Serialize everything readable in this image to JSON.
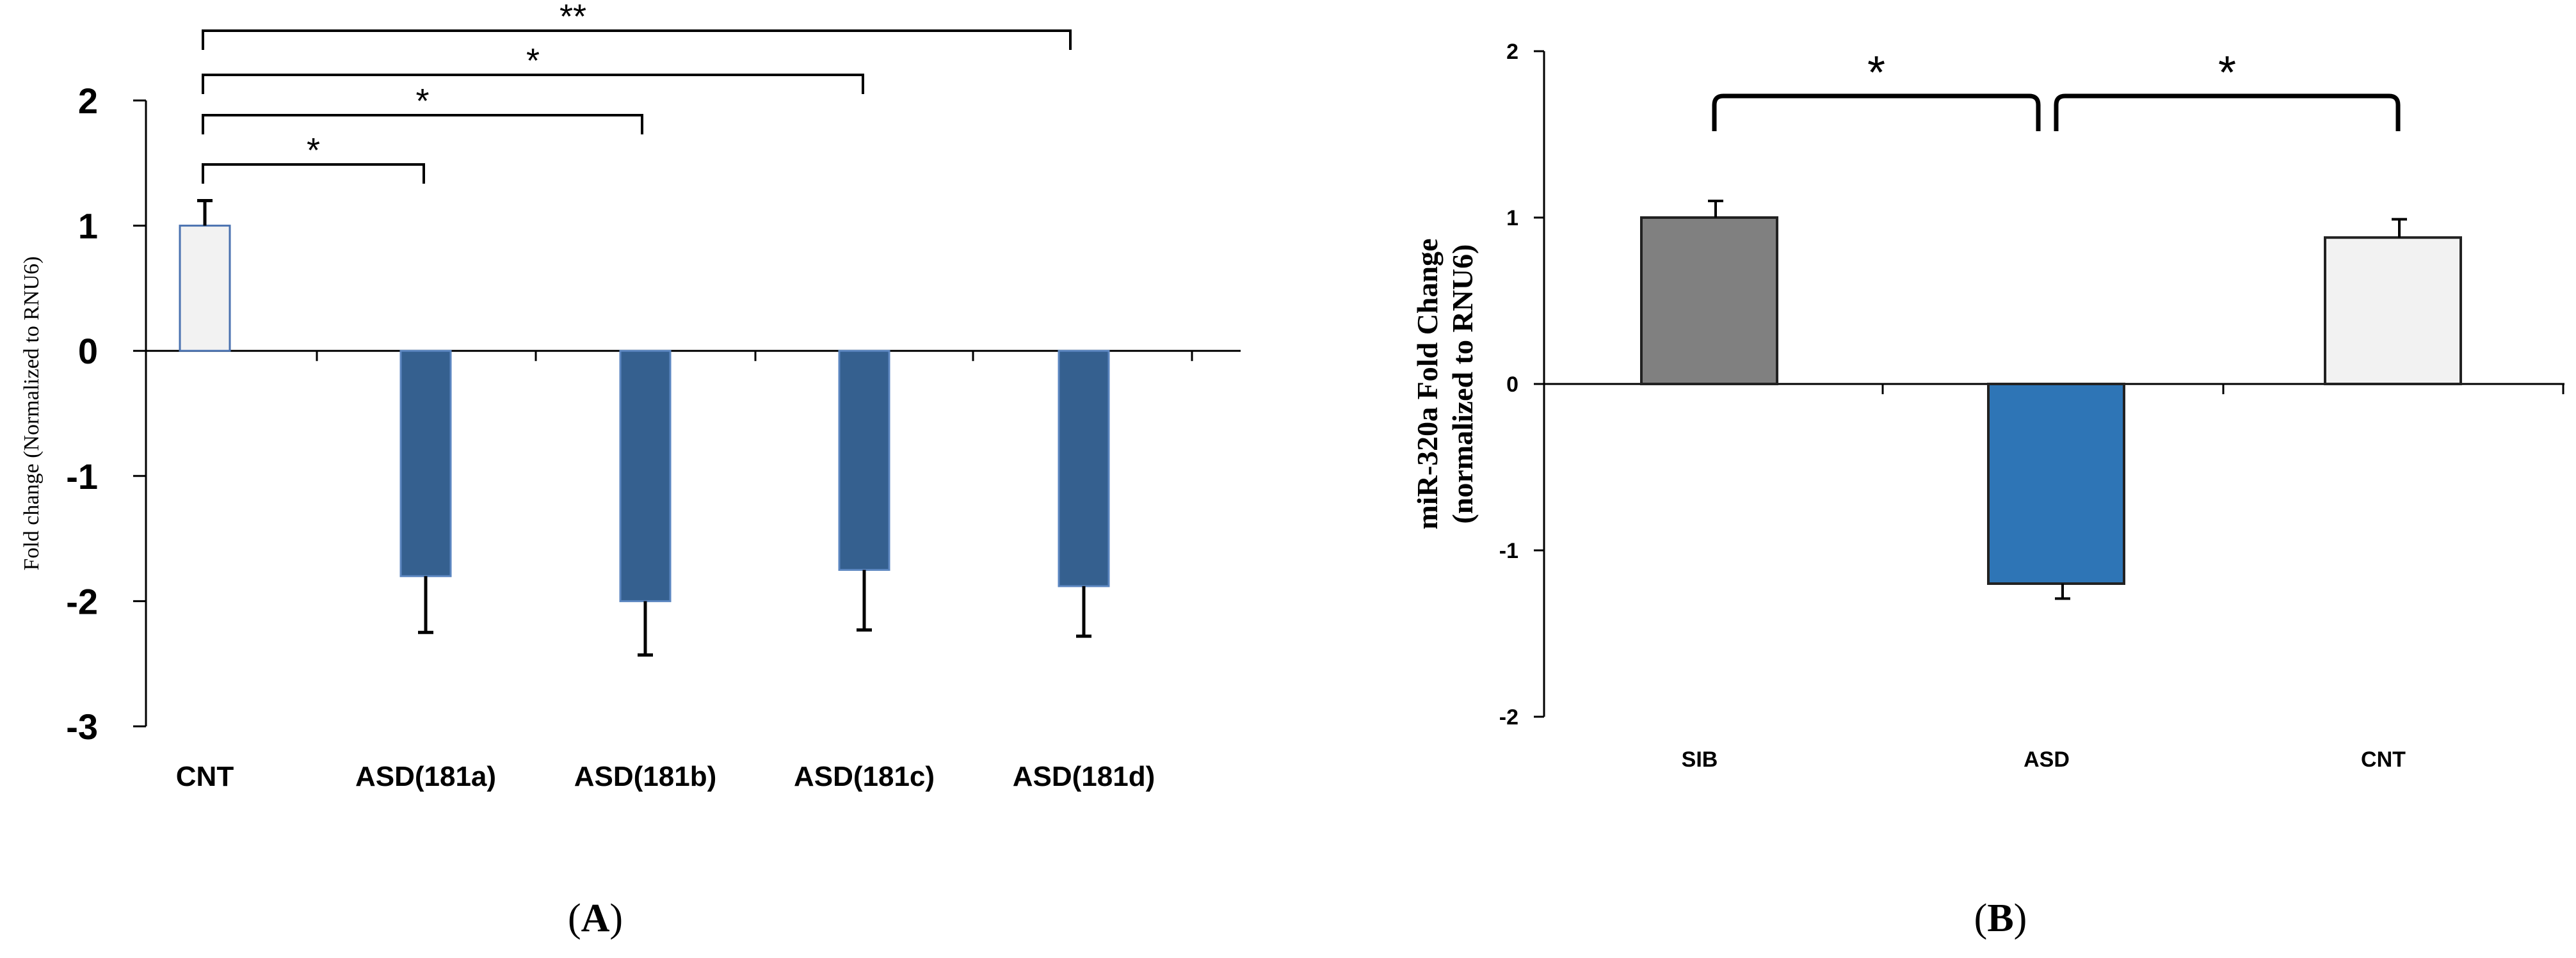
{
  "chart_data": [
    {
      "panel": "A",
      "type": "bar",
      "ylabel": "Fold change (Normalized to RNU6)",
      "ylim": [
        -3,
        2
      ],
      "yticks": [
        2,
        1,
        0,
        -1,
        -2,
        -3
      ],
      "ytick_labels": [
        "2",
        "1",
        "0",
        "-1",
        "-2",
        "-3"
      ],
      "categories": [
        "CNT",
        "ASD(181a)",
        "ASD(181b)",
        "ASD(181c)",
        "ASD(181d)"
      ],
      "values": [
        1.0,
        -1.8,
        -2.0,
        -1.75,
        -1.88
      ],
      "errors": [
        0.2,
        0.45,
        0.43,
        0.48,
        0.4
      ],
      "colors": [
        "#f2f2f2",
        "#35608f",
        "#35608f",
        "#35608f",
        "#35608f"
      ],
      "significance": [
        {
          "from": "CNT",
          "to": "ASD(181a)",
          "label": "*"
        },
        {
          "from": "CNT",
          "to": "ASD(181b)",
          "label": "*"
        },
        {
          "from": "CNT",
          "to": "ASD(181c)",
          "label": "*"
        },
        {
          "from": "CNT",
          "to": "ASD(181d)",
          "label": "**"
        }
      ]
    },
    {
      "panel": "B",
      "type": "bar",
      "ylabel_line1": "miR-320a Fold Change",
      "ylabel_line2": "(normalized to RNU6)",
      "ylim": [
        -2,
        2
      ],
      "yticks": [
        2,
        1,
        0,
        -1,
        -2
      ],
      "ytick_labels": [
        "2",
        "1",
        "0",
        "-1",
        "-2"
      ],
      "categories": [
        "SIB",
        "ASD",
        "CNT"
      ],
      "values": [
        1.0,
        -1.2,
        0.88
      ],
      "errors": [
        0.1,
        0.09,
        0.11
      ],
      "colors": [
        "#808080",
        "#2e75b6",
        "#f2f2f2"
      ],
      "significance": [
        {
          "from": "SIB",
          "to": "ASD",
          "label": "*"
        },
        {
          "from": "ASD",
          "to": "CNT",
          "label": "*"
        }
      ]
    }
  ],
  "panel_labels": {
    "A": {
      "open": "(",
      "letter": "A",
      "close": ")"
    },
    "B": {
      "open": "(",
      "letter": "B",
      "close": ")"
    }
  }
}
